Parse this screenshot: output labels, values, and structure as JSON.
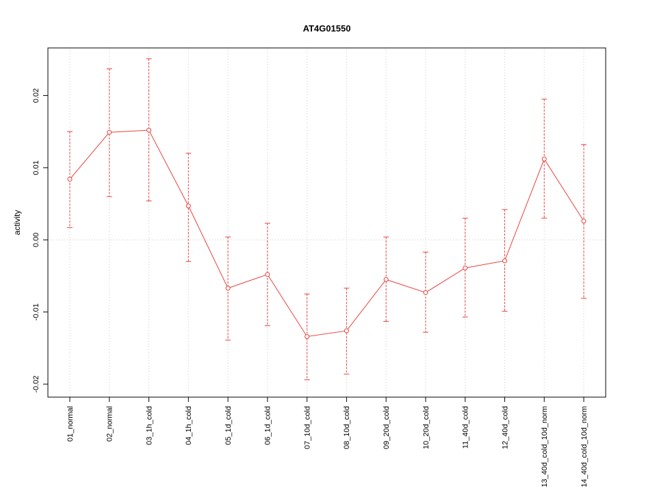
{
  "chart_data": {
    "type": "line",
    "title": "AT4G01550",
    "xlabel": "",
    "ylabel": "activity",
    "categories": [
      "01_normal",
      "02_normal",
      "03_1h_cold",
      "04_1h_cold",
      "05_1d_cold",
      "06_1d_cold",
      "07_10d_cold",
      "08_10d_cold",
      "09_20d_cold",
      "10_20d_cold",
      "11_40d_cold",
      "12_40d_cold",
      "13_40d_cold_10d_norm",
      "14_40d_cold_10d_norm"
    ],
    "series": [
      {
        "name": "activity",
        "values": [
          0.0084,
          0.0149,
          0.0152,
          0.0047,
          -0.0067,
          -0.0048,
          -0.0134,
          -0.0126,
          -0.0055,
          -0.0073,
          -0.0039,
          -0.0029,
          0.0112,
          0.0026
        ],
        "error_high": [
          0.015,
          0.0237,
          0.0251,
          0.012,
          0.0004,
          0.0023,
          -0.0075,
          -0.0067,
          0.0004,
          -0.0017,
          0.003,
          0.0042,
          0.0195,
          0.0132
        ],
        "error_low": [
          0.0017,
          0.006,
          0.0054,
          -0.003,
          -0.0139,
          -0.0119,
          -0.0194,
          -0.0186,
          -0.0113,
          -0.0128,
          -0.0107,
          -0.0099,
          0.003,
          -0.0081
        ]
      }
    ],
    "ylim": [
      -0.0218,
      0.0266
    ],
    "yticks": [
      -0.02,
      -0.01,
      0.0,
      0.01,
      0.02
    ],
    "grid": {
      "vertical_dotted": true,
      "zero_line_dotted": true,
      "legend": "none"
    },
    "colors": {
      "series": "#e8413c",
      "grid": "#c9c9c9",
      "axis": "#000000",
      "background": "#ffffff"
    }
  }
}
